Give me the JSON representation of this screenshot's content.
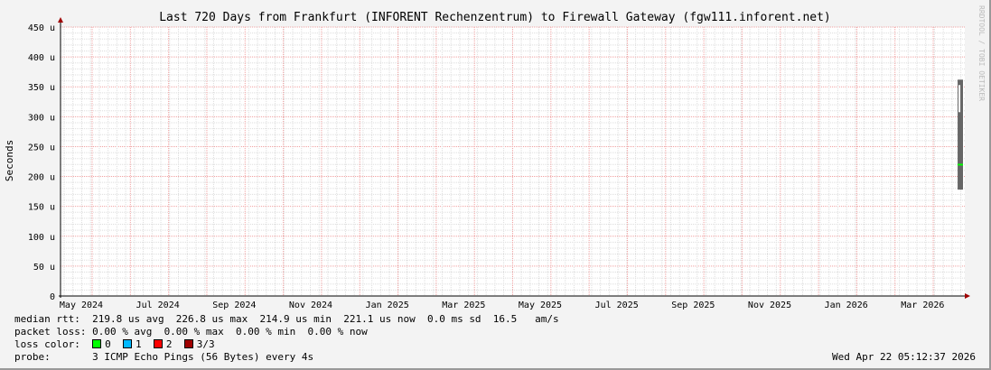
{
  "chart_data": {
    "type": "area",
    "title": "Last 720 Days from Frankfurt (INFORENT Rechenzentrum) to Firewall Gateway (fgw111.inforent.net)",
    "ylabel": "Seconds",
    "xlabel": "",
    "ylim": [
      0,
      450
    ],
    "y_unit": "u",
    "y_ticks": [
      "0",
      "50 u",
      "100 u",
      "150 u",
      "200 u",
      "250 u",
      "300 u",
      "350 u",
      "400 u",
      "450 u"
    ],
    "y_tick_values": [
      0,
      50,
      100,
      150,
      200,
      250,
      300,
      350,
      400,
      450
    ],
    "x_ticks": [
      "May 2024",
      "Jul 2024",
      "Sep 2024",
      "Nov 2024",
      "Jan 2025",
      "Mar 2025",
      "May 2025",
      "Jul 2025",
      "Sep 2025",
      "Nov 2025",
      "Jan 2026",
      "Mar 2026"
    ],
    "grid": true,
    "smoke": {
      "days_before_end": [
        5,
        0
      ],
      "min": 178,
      "max": 362,
      "color": "#666666"
    },
    "median": {
      "value": 219.8,
      "color": "#00ff00"
    },
    "watermark": "RRDTOOL / TOBI OETIKER"
  },
  "legend": {
    "median_rtt": "median rtt:  219.8 us avg  226.8 us max  214.9 us min  221.1 us now  0.0 ms sd  16.5   am/s",
    "packet_loss": "packet loss: 0.00 % avg  0.00 % max  0.00 % min  0.00 % now",
    "loss_color_label": "loss color:",
    "loss_colors": [
      {
        "label": "0",
        "color": "#00ff00"
      },
      {
        "label": "1",
        "color": "#00b8ff"
      },
      {
        "label": "2",
        "color": "#ff0000"
      },
      {
        "label": "3/3",
        "color": "#a00000"
      }
    ],
    "probe": "probe:       3 ICMP Echo Pings (56 Bytes) every 4s",
    "timestamp": "Wed Apr 22 05:12:37 2026"
  }
}
